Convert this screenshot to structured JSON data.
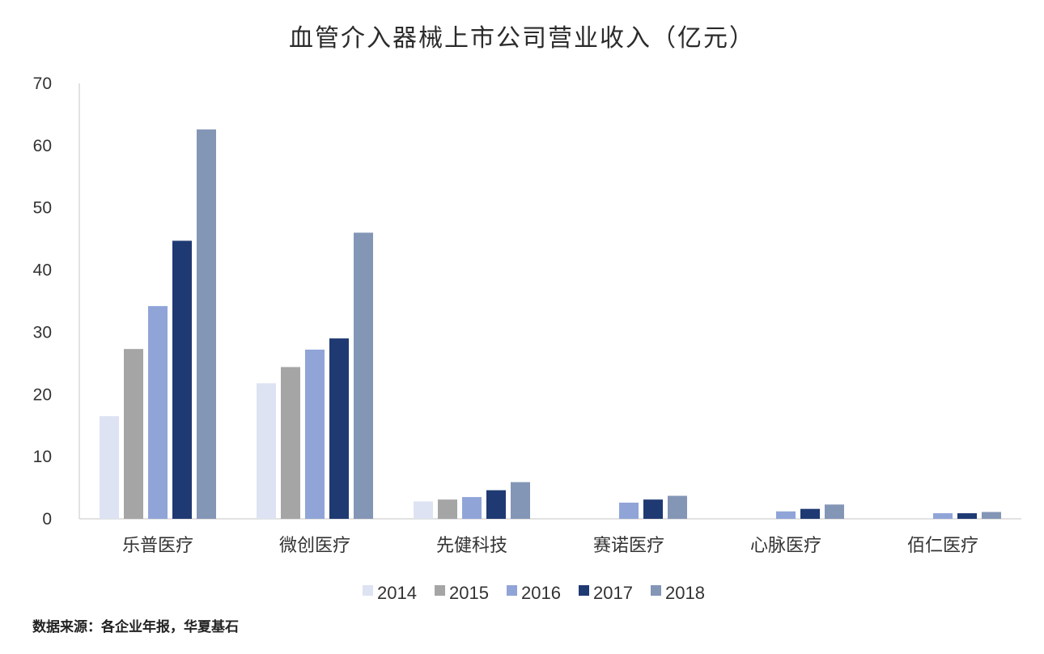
{
  "chart_data": {
    "type": "bar",
    "title": "血管介入器械上市公司营业收入（亿元）",
    "categories": [
      "乐普医疗",
      "微创医疗",
      "先健科技",
      "赛诺医疗",
      "心脉医疗",
      "佰仁医疗"
    ],
    "series": [
      {
        "name": "2014",
        "color": "#dde3f2",
        "values": [
          16.5,
          21.8,
          2.8,
          null,
          null,
          null
        ]
      },
      {
        "name": "2015",
        "color": "#a5a5a5",
        "values": [
          27.3,
          24.4,
          3.1,
          null,
          null,
          null
        ]
      },
      {
        "name": "2016",
        "color": "#90a4d8",
        "values": [
          34.2,
          27.2,
          3.5,
          2.6,
          1.2,
          0.9
        ]
      },
      {
        "name": "2017",
        "color": "#1f3a73",
        "values": [
          44.7,
          29.0,
          4.6,
          3.1,
          1.6,
          0.9
        ]
      },
      {
        "name": "2018",
        "color": "#8496b6",
        "values": [
          62.6,
          46.0,
          5.9,
          3.7,
          2.3,
          1.1
        ]
      }
    ],
    "yticks": [
      0,
      10,
      20,
      30,
      40,
      50,
      60,
      70
    ],
    "ylim": [
      0,
      70
    ],
    "legend_position": "bottom",
    "grid": false
  },
  "source": "数据来源：各企业年报，华夏基石"
}
